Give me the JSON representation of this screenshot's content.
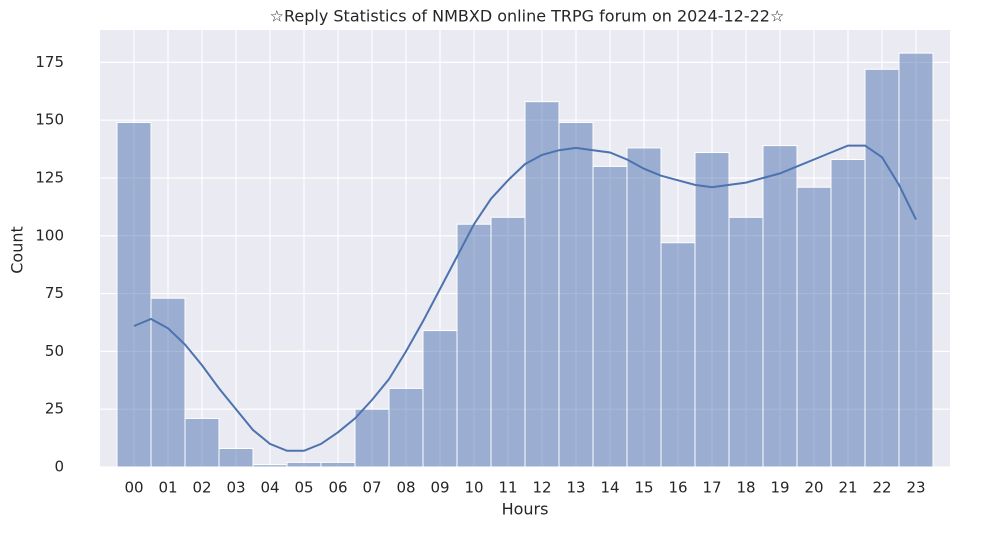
{
  "chart_data": {
    "type": "histogram",
    "title": "☆Reply Statistics of NMBXD online TRPG forum on 2024-12-22☆",
    "xlabel": "Hours",
    "ylabel": "Count",
    "categories": [
      "00",
      "01",
      "02",
      "03",
      "04",
      "05",
      "06",
      "07",
      "08",
      "09",
      "10",
      "11",
      "12",
      "13",
      "14",
      "15",
      "16",
      "17",
      "18",
      "19",
      "20",
      "21",
      "22",
      "23"
    ],
    "values": [
      149,
      73,
      21,
      8,
      1,
      2,
      2,
      25,
      34,
      59,
      105,
      108,
      158,
      149,
      130,
      138,
      97,
      136,
      108,
      139,
      121,
      133,
      172,
      179
    ],
    "color": "#4c72b0",
    "kde": {
      "color": "#4c72b0",
      "x": [
        0,
        0.5,
        1,
        1.5,
        2,
        2.5,
        3,
        3.5,
        4,
        4.5,
        5,
        5.5,
        6,
        6.5,
        7,
        7.5,
        8,
        8.5,
        9,
        9.5,
        10,
        10.5,
        11,
        11.5,
        12,
        12.5,
        13,
        13.5,
        14,
        14.5,
        15,
        15.5,
        16,
        16.5,
        17,
        17.5,
        18,
        18.5,
        19,
        19.5,
        20,
        20.5,
        21,
        21.5,
        22,
        22.5,
        23
      ],
      "values": [
        61,
        64,
        60,
        53,
        44,
        34,
        25,
        16,
        10,
        7,
        7,
        10,
        15,
        21,
        29,
        38,
        50,
        63,
        77,
        91,
        105,
        116,
        124,
        131,
        135,
        137,
        138,
        137,
        136,
        133,
        129,
        126,
        124,
        122,
        121,
        122,
        123,
        125,
        127,
        130,
        133,
        136,
        139,
        139,
        134,
        122,
        107
      ]
    },
    "ylim": [
      0,
      189
    ],
    "yticks": [
      0,
      25,
      50,
      75,
      100,
      125,
      150,
      175
    ],
    "grid": true
  }
}
